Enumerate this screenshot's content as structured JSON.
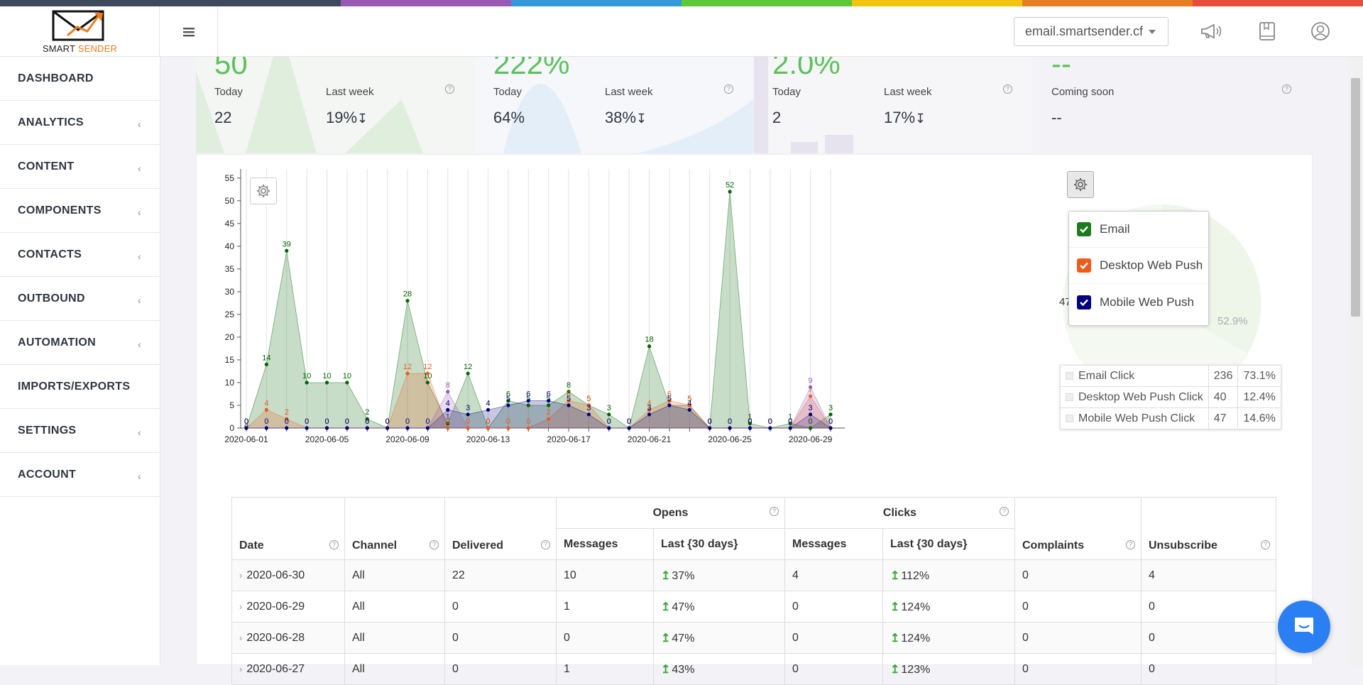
{
  "stripe_colors": [
    "#3d4a5c",
    "#3d4a5c",
    "#9b59b6",
    "#3498db",
    "#5cc83a",
    "#f1c40f",
    "#e67e22",
    "#e74c3c"
  ],
  "brand": {
    "name_left": "SMART ",
    "name_right": "SENDER",
    "accent": "#f07b1e"
  },
  "header": {
    "domain": "email.smartsender.cf",
    "icons": [
      "megaphone-icon",
      "book-icon",
      "user-circle-icon"
    ]
  },
  "sidebar": {
    "items": [
      {
        "label": "DASHBOARD",
        "chevron": false
      },
      {
        "label": "ANALYTICS",
        "chevron": true
      },
      {
        "label": "CONTENT",
        "chevron": true
      },
      {
        "label": "COMPONENTS",
        "chevron": true
      },
      {
        "label": "CONTACTS",
        "chevron": true
      },
      {
        "label": "OUTBOUND",
        "chevron": true
      },
      {
        "label": "AUTOMATION",
        "chevron": true
      },
      {
        "label": "IMPORTS/EXPORTS",
        "chevron": false
      },
      {
        "label": "SETTINGS",
        "chevron": true
      },
      {
        "label": "ACCOUNT",
        "chevron": true
      }
    ]
  },
  "stats": [
    {
      "big": "50",
      "today_label": "Today",
      "today": "22",
      "week_label": "Last week",
      "week": "19%",
      "trend": "down"
    },
    {
      "big": "222%",
      "today_label": "Today",
      "today": "64%",
      "week_label": "Last week",
      "week": "38%",
      "trend": "down"
    },
    {
      "big": "2.0%",
      "today_label": "Today",
      "today": "2",
      "week_label": "Last week",
      "week": "17%",
      "trend": "down"
    },
    {
      "big": "--",
      "today_label": "Coming soon",
      "today": "--",
      "week_label": "",
      "week": "",
      "trend": ""
    }
  ],
  "chart_data": {
    "type": "area",
    "x": [
      "2020-06-01",
      "2020-06-02",
      "2020-06-03",
      "2020-06-04",
      "2020-06-05",
      "2020-06-06",
      "2020-06-07",
      "2020-06-08",
      "2020-06-09",
      "2020-06-10",
      "2020-06-11",
      "2020-06-12",
      "2020-06-13",
      "2020-06-14",
      "2020-06-15",
      "2020-06-16",
      "2020-06-17",
      "2020-06-18",
      "2020-06-19",
      "2020-06-20",
      "2020-06-21",
      "2020-06-22",
      "2020-06-23",
      "2020-06-24",
      "2020-06-25",
      "2020-06-26",
      "2020-06-27",
      "2020-06-28",
      "2020-06-29",
      "2020-06-30"
    ],
    "x_start_label": "0",
    "tick_labels": [
      "2020-06-01",
      "2020-06-05",
      "2020-06-09",
      "2020-06-13",
      "2020-06-17",
      "2020-06-21",
      "2020-06-25",
      "2020-06-29"
    ],
    "ylim": [
      0,
      57
    ],
    "yticks": [
      0,
      5,
      10,
      15,
      20,
      25,
      30,
      35,
      40,
      45,
      50,
      55
    ],
    "series": [
      {
        "name": "Email",
        "color": "#006400",
        "fill": "rgba(0,100,0,0.22)",
        "values": [
          0,
          14,
          39,
          10,
          10,
          10,
          2,
          0,
          28,
          10,
          1,
          12,
          0,
          6,
          5,
          5,
          8,
          5,
          3,
          0,
          18,
          5,
          5,
          0,
          52,
          1,
          0,
          1,
          0,
          3
        ]
      },
      {
        "name": "Desktop Web Push",
        "color": "#ef5a1d",
        "fill": "rgba(239,90,29,0.22)",
        "values": [
          0,
          4,
          2,
          0,
          0,
          0,
          0,
          0,
          12,
          12,
          0,
          0,
          0,
          0,
          0,
          2,
          6,
          5,
          0,
          0,
          4,
          6,
          5,
          0,
          0,
          0,
          0,
          0,
          7,
          0
        ]
      },
      {
        "name": "Mobile Web Push",
        "color": "#000080",
        "fill": "rgba(0,0,128,0.22)",
        "values": [
          0,
          0,
          0,
          0,
          0,
          0,
          0,
          0,
          0,
          0,
          4,
          3,
          4,
          5,
          6,
          6,
          5,
          3,
          0,
          0,
          3,
          5,
          4,
          0,
          0,
          0,
          0,
          0,
          3,
          0
        ]
      },
      {
        "name": "",
        "color": "#9b59b6",
        "fill": "rgba(155,89,182,0.22)",
        "values": [
          0,
          0,
          0,
          0,
          0,
          0,
          0,
          0,
          0,
          0,
          8,
          0,
          0,
          0,
          0,
          0,
          0,
          0,
          0,
          0,
          0,
          0,
          0,
          0,
          0,
          0,
          0,
          0,
          9,
          0
        ]
      }
    ]
  },
  "legend_menu": [
    {
      "label": "Email",
      "color": "#1e7a1e"
    },
    {
      "label": "Desktop Web Push",
      "color": "#f05a1d"
    },
    {
      "label": "Mobile Web Push",
      "color": "#000080"
    }
  ],
  "pie": {
    "label_left": "47",
    "label_right": "52.9%",
    "table": [
      {
        "name": "Email Click",
        "count": "236",
        "pct": "73.1%"
      },
      {
        "name": "Desktop Web Push Click",
        "count": "40",
        "pct": "12.4%"
      },
      {
        "name": "Mobile Web Push Click",
        "count": "47",
        "pct": "14.6%"
      }
    ]
  },
  "table": {
    "group_headers": {
      "opens": "Opens",
      "clicks": "Clicks"
    },
    "columns": [
      "Date",
      "Channel",
      "Delivered",
      "Messages",
      "Last {30 days}",
      "Messages",
      "Last {30 days}",
      "Complaints",
      "Unsubscribe"
    ],
    "rows": [
      {
        "date": "2020-06-30",
        "channel": "All",
        "delivered": "22",
        "open_msg": "10",
        "open_last": "37%",
        "click_msg": "4",
        "click_last": "112%",
        "complaints": "0",
        "unsub": "4"
      },
      {
        "date": "2020-06-29",
        "channel": "All",
        "delivered": "0",
        "open_msg": "1",
        "open_last": "47%",
        "click_msg": "0",
        "click_last": "124%",
        "complaints": "0",
        "unsub": "0"
      },
      {
        "date": "2020-06-28",
        "channel": "All",
        "delivered": "0",
        "open_msg": "0",
        "open_last": "47%",
        "click_msg": "0",
        "click_last": "124%",
        "complaints": "0",
        "unsub": "0"
      },
      {
        "date": "2020-06-27",
        "channel": "All",
        "delivered": "0",
        "open_msg": "1",
        "open_last": "43%",
        "click_msg": "0",
        "click_last": "123%",
        "complaints": "0",
        "unsub": "0"
      }
    ]
  }
}
